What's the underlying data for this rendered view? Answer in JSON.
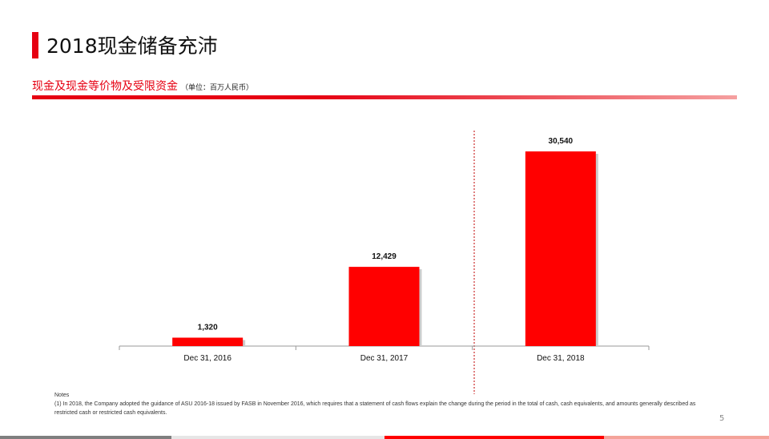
{
  "title": "2018现金储备充沛",
  "subtitle": "现金及现金等价物及受限资金",
  "unit": "（单位：百万人民币）",
  "chart_data": {
    "type": "bar",
    "categories": [
      "Dec 31, 2016",
      "Dec 31, 2017",
      "Dec 31, 2018"
    ],
    "values": [
      1320,
      12429,
      30540
    ],
    "data_labels": [
      "1,320",
      "12,429",
      "30,540"
    ],
    "ylim": [
      0,
      30540
    ],
    "grid": false,
    "bar_color": "#ff0000"
  },
  "notes": {
    "heading": "Notes",
    "text": "(1) In 2018, the Company adopted the guidance of ASU 2016-18 issued by FASB in November 2016, which requires that a statement of cash flows explain the change during the period in the total of cash, cash equivalents, and amounts generally described as restricted cash or restricted cash equivalents."
  },
  "page_number": "5"
}
